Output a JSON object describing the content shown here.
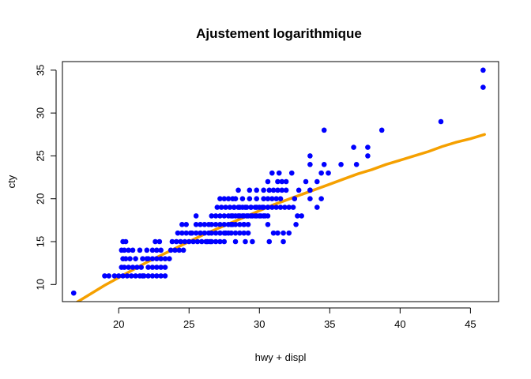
{
  "chart_data": {
    "type": "scatter",
    "title": "Ajustement logarithmique",
    "xlabel": "hwy + displ",
    "ylabel": "cty",
    "xlim": [
      16,
      47
    ],
    "ylim": [
      8,
      36
    ],
    "x_ticks": [
      20,
      25,
      30,
      35,
      40,
      45
    ],
    "y_ticks": [
      10,
      15,
      20,
      25,
      30,
      35
    ],
    "grid": false,
    "point_color": "#0000ff",
    "line_color": "#f5a000",
    "points": {
      "x": [
        16.8,
        19.0,
        19.3,
        19.7,
        20.0,
        20.3,
        20.6,
        20.9,
        21.2,
        21.5,
        21.8,
        20.2,
        20.4,
        20.7,
        21.0,
        21.3,
        21.6,
        20.3,
        20.5,
        20.8,
        21.2,
        21.7,
        22.0,
        20.2,
        20.4,
        20.7,
        21.0,
        21.5,
        22.0,
        20.3,
        20.5,
        21.7,
        22.1,
        22.4,
        22.7,
        23.0,
        23.3,
        22.1,
        22.4,
        22.7,
        23.0,
        23.3,
        22.1,
        22.4,
        22.7,
        23.0,
        23.3,
        23.6,
        22.4,
        22.7,
        23.0,
        22.6,
        22.9,
        23.7,
        24.0,
        24.3,
        24.6,
        23.8,
        24.1,
        24.4,
        24.7,
        25.0,
        24.2,
        24.5,
        24.8,
        25.1,
        24.5,
        24.8,
        25.3,
        25.6,
        25.9,
        26.2,
        26.5,
        25.2,
        25.5,
        25.8,
        26.1,
        26.4,
        25.5,
        25.8,
        26.1,
        26.4,
        25.5,
        26.3,
        26.6,
        26.9,
        27.2,
        27.5,
        26.6,
        26.9,
        27.2,
        27.5,
        27.8,
        26.6,
        26.9,
        27.2,
        27.5,
        27.8,
        28.1,
        26.6,
        26.9,
        27.2,
        27.5,
        27.8,
        28.1,
        27.0,
        27.3,
        27.6,
        27.9,
        28.2,
        27.2,
        27.5,
        27.8,
        28.1,
        27.2,
        27.6,
        28.0,
        28.3,
        28.6,
        28.9,
        29.2,
        28.0,
        28.3,
        28.6,
        28.9,
        29.2,
        28.0,
        28.3,
        28.6,
        28.9,
        29.2,
        29.5,
        29.8,
        30.1,
        30.4,
        28.5,
        28.8,
        29.1,
        29.4,
        29.7,
        30.0,
        30.3,
        30.6,
        28.5,
        28.8,
        29.1,
        29.4,
        29.7,
        30.0,
        30.3,
        30.6,
        28.2,
        28.6,
        29.0,
        29.4,
        29.8,
        30.2,
        28.3,
        28.8,
        29.3,
        29.8,
        30.3,
        28.5,
        29.3,
        29.8,
        30.3,
        28.3,
        29.0,
        29.5,
        28.0,
        28.9,
        30.6,
        30.9,
        31.2,
        31.5,
        31.8,
        32.1,
        32.4,
        30.6,
        30.9,
        31.2,
        31.5,
        30.7,
        31.0,
        31.3,
        31.6,
        31.9,
        30.6,
        31.3,
        31.6,
        31.9,
        30.9,
        31.4,
        32.3,
        30.6,
        32.6,
        30.7,
        31.7,
        31.0,
        31.3,
        31.7,
        32.1,
        32.7,
        33.0,
        32.5,
        32.8,
        33.3,
        33.6,
        33.6,
        34.1,
        33.6,
        34.4,
        34.1,
        34.4,
        33.6,
        33.6,
        34.6,
        34.6,
        34.9,
        35.8,
        36.7,
        37.7,
        37.7,
        36.9,
        38.7,
        42.9,
        45.9,
        45.9
      ],
      "y": [
        9,
        11,
        11,
        11,
        11,
        11,
        11,
        11,
        11,
        11,
        11,
        12,
        12,
        12,
        12,
        12,
        12,
        13,
        13,
        13,
        13,
        13,
        13,
        14,
        14,
        14,
        14,
        14,
        14,
        15,
        15,
        11,
        11,
        11,
        11,
        11,
        11,
        12,
        12,
        12,
        12,
        12,
        13,
        13,
        13,
        13,
        13,
        13,
        14,
        14,
        14,
        15,
        15,
        14,
        14,
        14,
        14,
        15,
        15,
        15,
        15,
        15,
        16,
        16,
        16,
        16,
        17,
        17,
        15,
        15,
        15,
        15,
        15,
        16,
        16,
        16,
        16,
        16,
        17,
        17,
        17,
        17,
        18,
        15,
        15,
        15,
        15,
        15,
        16,
        16,
        16,
        16,
        16,
        17,
        17,
        17,
        17,
        17,
        17,
        18,
        18,
        18,
        18,
        18,
        18,
        19,
        19,
        19,
        19,
        19,
        20,
        20,
        20,
        20,
        16,
        16,
        16,
        16,
        16,
        16,
        16,
        17,
        17,
        17,
        17,
        17,
        18,
        18,
        18,
        18,
        18,
        18,
        18,
        18,
        18,
        19,
        19,
        19,
        19,
        19,
        19,
        19,
        19,
        18,
        18,
        18,
        18,
        18,
        18,
        18,
        18,
        19,
        19,
        19,
        19,
        19,
        19,
        20,
        20,
        20,
        20,
        20,
        21,
        21,
        21,
        21,
        15,
        15,
        15,
        17,
        17,
        19,
        19,
        19,
        19,
        19,
        19,
        19,
        20,
        20,
        20,
        20,
        21,
        21,
        21,
        21,
        21,
        22,
        22,
        22,
        22,
        23,
        23,
        23,
        17,
        17,
        15,
        15,
        16,
        16,
        16,
        16,
        18,
        18,
        20,
        21,
        22,
        20,
        21,
        19,
        21,
        20,
        22,
        23,
        24,
        25,
        24,
        28,
        23,
        24,
        26,
        26,
        25,
        24,
        28,
        29,
        35,
        33
      ]
    },
    "fit_line": {
      "x": [
        17,
        18,
        19,
        20,
        21,
        22,
        23,
        24,
        25,
        26,
        27,
        28,
        29,
        30,
        31,
        32,
        33,
        34,
        35,
        36,
        37,
        38,
        39,
        40,
        41,
        42,
        43,
        44,
        45,
        46
      ],
      "y": [
        7.9,
        8.9,
        9.9,
        10.8,
        11.7,
        12.6,
        13.4,
        14.2,
        15.0,
        15.8,
        16.5,
        17.2,
        17.9,
        18.6,
        19.3,
        19.9,
        20.5,
        21.1,
        21.7,
        22.3,
        22.9,
        23.4,
        24.0,
        24.5,
        25.0,
        25.5,
        26.1,
        26.6,
        27.0,
        27.5
      ]
    }
  }
}
